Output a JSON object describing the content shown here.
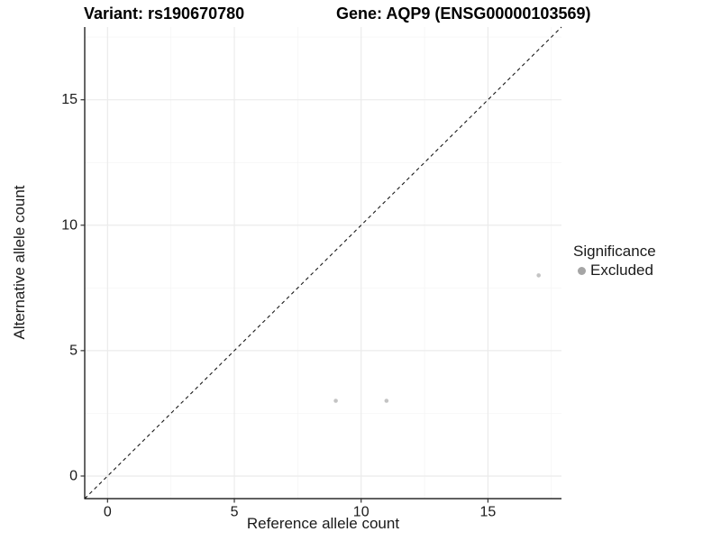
{
  "chart_data": {
    "type": "scatter",
    "title_left": "Variant: rs190670780",
    "title_right": "Gene: AQP9 (ENSG00000103569)",
    "xlabel": "Reference allele count",
    "ylabel": "Alternative allele count",
    "xlim": [
      -0.9,
      17.9
    ],
    "ylim": [
      -0.9,
      17.9
    ],
    "xticks": [
      0,
      5,
      10,
      15
    ],
    "yticks": [
      0,
      5,
      10,
      15
    ],
    "xticks_minor": [
      2.5,
      7.5,
      12.5,
      17.5
    ],
    "yticks_minor": [
      2.5,
      7.5,
      12.5,
      17.5
    ],
    "grid": "on",
    "series": [
      {
        "name": "Excluded",
        "marker": "circle",
        "color": "#c4c4c4",
        "marker_radius": 2.3,
        "points": [
          [
            9,
            3
          ],
          [
            11,
            3
          ],
          [
            17,
            8
          ]
        ]
      }
    ],
    "reference_line": {
      "equation": "y = x",
      "style": "dashed",
      "color": "#1a1a1a"
    },
    "legend": {
      "title": "Significance",
      "position": "right",
      "entries": [
        {
          "label": "Excluded",
          "color": "#a5a5a5"
        }
      ]
    }
  },
  "colors": {
    "background": "#ffffff",
    "grid_major": "#ebebeb",
    "grid_minor": "#f4f4f4",
    "axis_line": "#000000",
    "tick_mark": "#333333",
    "tick_text": "#1a1a1a"
  }
}
